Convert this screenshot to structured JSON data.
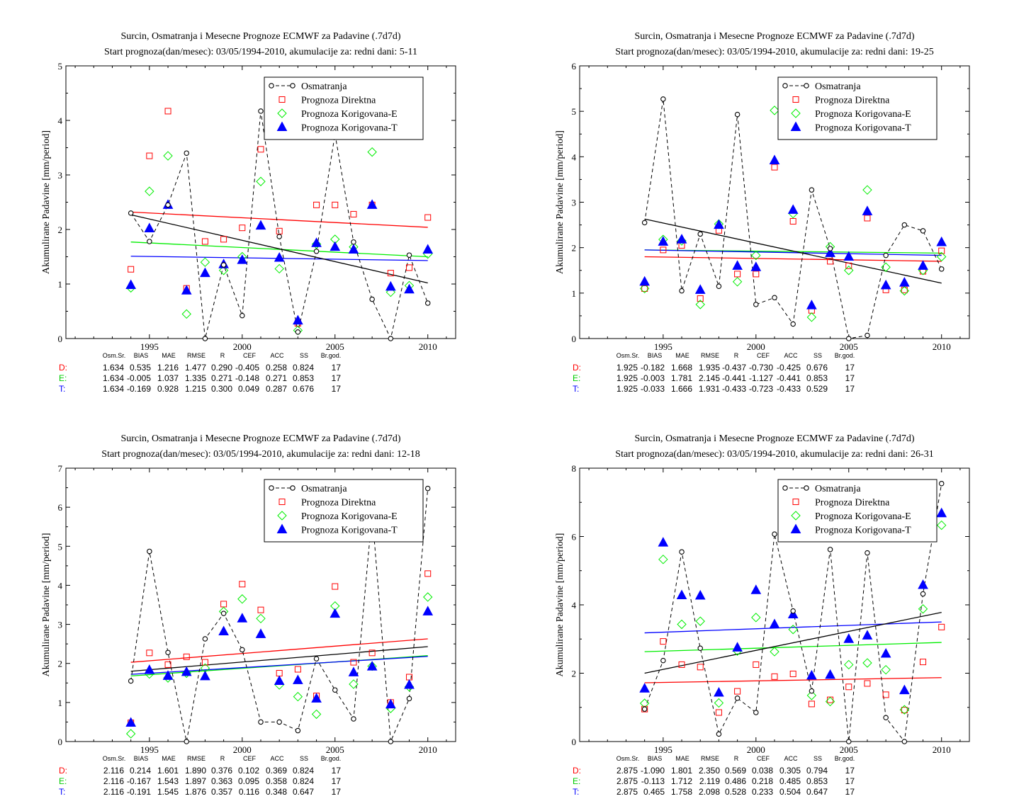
{
  "chart_data": [
    {
      "type": "scatter",
      "title": "Surcin, Osmatranja i Mesecne Prognoze ECMWF za Padavine (.7d7d)",
      "subtitle": "Start prognoza(dan/mesec): 03/05/1994-2010, akumulacije za: redni dani: 5-11",
      "ylabel": "Akumulirane Padavine [mm/period]",
      "xlim": [
        1990.5,
        2011.5
      ],
      "ylim": [
        0,
        5
      ],
      "xticks": [
        "1995",
        "2000",
        "2005",
        "2010"
      ],
      "yticks": [
        "0",
        "1",
        "2",
        "3",
        "4",
        "5"
      ],
      "x": [
        1994,
        1995,
        1996,
        1997,
        1998,
        1999,
        2000,
        2001,
        2002,
        2003,
        2004,
        2005,
        2006,
        2007,
        2008,
        2009,
        2010
      ],
      "legend": [
        "Osmatranja",
        "Prognoza Direktna",
        "Prognoza Korigovana-E",
        "Prognoza Korigovana-T"
      ],
      "series": [
        {
          "name": "Osmatranja",
          "color": "#000000",
          "values": [
            2.3,
            1.78,
            2.45,
            3.4,
            0.0,
            1.35,
            0.42,
            4.17,
            1.87,
            0.12,
            1.6,
            3.75,
            1.77,
            0.72,
            0.0,
            1.53,
            0.65
          ]
        },
        {
          "name": "Prognoza Direktna",
          "color": "#ff0000",
          "values": [
            1.27,
            3.35,
            4.17,
            0.92,
            1.78,
            1.82,
            2.03,
            3.47,
            1.97,
            0.28,
            2.45,
            2.45,
            2.28,
            2.45,
            1.2,
            1.3,
            2.22
          ]
        },
        {
          "name": "Prognoza Korigovana-E",
          "color": "#00ee00",
          "values": [
            0.93,
            2.7,
            3.35,
            0.45,
            1.4,
            1.25,
            1.5,
            2.88,
            1.28,
            0.15,
            1.73,
            1.82,
            1.68,
            3.42,
            0.85,
            0.97,
            1.55
          ]
        },
        {
          "name": "Prognoza Korigovana-T",
          "color": "#0000ff",
          "values": [
            0.98,
            2.02,
            2.45,
            0.88,
            1.2,
            1.36,
            1.44,
            2.07,
            1.48,
            0.33,
            1.75,
            1.68,
            1.63,
            2.45,
            0.95,
            0.9,
            1.63
          ]
        }
      ],
      "trendlines": [
        {
          "color": "#ff0000",
          "y1994": 2.32,
          "y2010": 2.04
        },
        {
          "color": "#00ee00",
          "y1994": 1.77,
          "y2010": 1.5
        },
        {
          "color": "#0000ff",
          "y1994": 1.51,
          "y2010": 1.43
        },
        {
          "color": "#000000",
          "y1994": 2.27,
          "y2010": 1.02
        }
      ],
      "stats_header": [
        "Osm.Sr.",
        "BIAS",
        "MAE",
        "RMSE",
        "R",
        "CEF",
        "ACC",
        "SS",
        "Br.god."
      ],
      "stats": [
        {
          "label": "D:",
          "color": "#ff0000",
          "values": [
            "1.634",
            "0.535",
            "1.216",
            "1.477",
            "0.290",
            "-0.405",
            "0.258",
            "0.824",
            "17"
          ]
        },
        {
          "label": "E:",
          "color": "#00cc00",
          "values": [
            "1.634",
            "-0.005",
            "1.037",
            "1.335",
            "0.271",
            "-0.148",
            "0.271",
            "0.853",
            "17"
          ]
        },
        {
          "label": "T:",
          "color": "#0000ff",
          "values": [
            "1.634",
            "-0.169",
            "0.928",
            "1.215",
            "0.300",
            "0.049",
            "0.287",
            "0.676",
            "17"
          ]
        }
      ]
    },
    {
      "type": "scatter",
      "title": "Surcin, Osmatranja i Mesecne Prognoze ECMWF za Padavine (.7d7d)",
      "subtitle": "Start prognoza(dan/mesec): 03/05/1994-2010, akumulacije za: redni dani: 19-25",
      "ylabel": "Akumulirane Padavine [mm/period]",
      "xlim": [
        1990.5,
        2011.5
      ],
      "ylim": [
        0,
        6
      ],
      "xticks": [
        "1995",
        "2000",
        "2005",
        "2010"
      ],
      "yticks": [
        "0",
        "1",
        "2",
        "3",
        "4",
        "5",
        "6"
      ],
      "x": [
        1994,
        1995,
        1996,
        1997,
        1998,
        1999,
        2000,
        2001,
        2002,
        2003,
        2004,
        2005,
        2006,
        2007,
        2008,
        2009,
        2010
      ],
      "legend": [
        "Osmatranja",
        "Prognoza Direktna",
        "Prognoza Korigovana-E",
        "Prognoza Korigovana-T"
      ],
      "series": [
        {
          "name": "Osmatranja",
          "color": "#000000",
          "values": [
            2.55,
            5.27,
            1.05,
            2.3,
            1.15,
            4.93,
            0.75,
            0.9,
            0.32,
            3.27,
            1.98,
            0.0,
            0.07,
            1.83,
            2.5,
            2.37,
            1.53
          ]
        },
        {
          "name": "Prognoza Direktna",
          "color": "#ff0000",
          "values": [
            1.1,
            1.95,
            2.05,
            0.88,
            2.38,
            1.42,
            1.42,
            3.77,
            2.58,
            0.62,
            1.7,
            1.6,
            2.65,
            1.07,
            1.07,
            1.48,
            1.93
          ]
        },
        {
          "name": "Prognoza Korigovana-E",
          "color": "#00ee00",
          "values": [
            1.1,
            2.18,
            2.15,
            0.75,
            2.52,
            1.25,
            1.83,
            5.02,
            2.75,
            0.47,
            2.02,
            1.5,
            3.27,
            1.57,
            1.05,
            1.5,
            1.8
          ]
        },
        {
          "name": "Prognoza Korigovana-T",
          "color": "#0000ff",
          "values": [
            1.25,
            2.13,
            2.18,
            1.07,
            2.5,
            1.6,
            1.57,
            3.92,
            2.83,
            0.73,
            1.88,
            1.8,
            2.8,
            1.17,
            1.23,
            1.6,
            2.12
          ]
        }
      ],
      "trendlines": [
        {
          "color": "#ff0000",
          "y1994": 1.8,
          "y2010": 1.7
        },
        {
          "color": "#00ee00",
          "y1994": 1.95,
          "y2010": 1.88
        },
        {
          "color": "#0000ff",
          "y1994": 1.95,
          "y2010": 1.83
        },
        {
          "color": "#000000",
          "y1994": 2.63,
          "y2010": 1.22
        }
      ],
      "stats_header": [
        "Osm.Sr.",
        "BIAS",
        "MAE",
        "RMSE",
        "R",
        "CEF",
        "ACC",
        "SS",
        "Br.god."
      ],
      "stats": [
        {
          "label": "D:",
          "color": "#ff0000",
          "values": [
            "1.925",
            "-0.182",
            "1.668",
            "1.935",
            "-0.437",
            "-0.730",
            "-0.425",
            "0.676",
            "17"
          ]
        },
        {
          "label": "E:",
          "color": "#00cc00",
          "values": [
            "1.925",
            "-0.003",
            "1.781",
            "2.145",
            "-0.441",
            "-1.127",
            "-0.441",
            "0.853",
            "17"
          ]
        },
        {
          "label": "T:",
          "color": "#0000ff",
          "values": [
            "1.925",
            "-0.033",
            "1.666",
            "1.931",
            "-0.433",
            "-0.723",
            "-0.433",
            "0.529",
            "17"
          ]
        }
      ]
    },
    {
      "type": "scatter",
      "title": "Surcin, Osmatranja i Mesecne Prognoze ECMWF za Padavine (.7d7d)",
      "subtitle": "Start prognoza(dan/mesec): 03/05/1994-2010, akumulacije za: redni dani: 12-18",
      "ylabel": "Akumulirane Padavine [mm/period]",
      "xlim": [
        1990.5,
        2011.5
      ],
      "ylim": [
        0,
        7
      ],
      "xticks": [
        "1995",
        "2000",
        "2005",
        "2010"
      ],
      "yticks": [
        "0",
        "1",
        "2",
        "3",
        "4",
        "5",
        "6",
        "7"
      ],
      "x": [
        1994,
        1995,
        1996,
        1997,
        1998,
        1999,
        2000,
        2001,
        2002,
        2003,
        2004,
        2005,
        2006,
        2007,
        2008,
        2009,
        2010
      ],
      "legend": [
        "Osmatranja",
        "Prognoza Direktna",
        "Prognoza Korigovana-E",
        "Prognoza Korigovana-T"
      ],
      "series": [
        {
          "name": "Osmatranja",
          "color": "#000000",
          "values": [
            1.55,
            4.87,
            2.28,
            0.0,
            2.63,
            3.28,
            2.35,
            0.5,
            0.5,
            0.28,
            2.12,
            1.32,
            0.58,
            5.85,
            0.0,
            1.1,
            6.48
          ]
        },
        {
          "name": "Prognoza Direktna",
          "color": "#ff0000",
          "values": [
            0.48,
            2.27,
            1.97,
            2.17,
            2.03,
            3.52,
            4.03,
            3.37,
            1.75,
            1.85,
            1.17,
            3.97,
            2.03,
            2.27,
            1.0,
            1.65,
            4.3
          ]
        },
        {
          "name": "Prognoza Korigovana-E",
          "color": "#00ee00",
          "values": [
            0.2,
            1.73,
            1.63,
            1.75,
            1.88,
            3.33,
            3.65,
            3.15,
            1.45,
            1.15,
            0.7,
            3.47,
            1.47,
            1.93,
            0.85,
            1.4,
            3.7
          ]
        },
        {
          "name": "Prognoza Korigovana-T",
          "color": "#0000ff",
          "values": [
            0.48,
            1.83,
            1.68,
            1.78,
            1.67,
            2.82,
            3.15,
            2.75,
            1.55,
            1.57,
            1.1,
            3.27,
            1.77,
            1.92,
            0.95,
            1.45,
            3.33
          ]
        }
      ],
      "trendlines": [
        {
          "color": "#ff0000",
          "y1994": 2.03,
          "y2010": 2.63
        },
        {
          "color": "#00ee00",
          "y1994": 1.68,
          "y2010": 2.2
        },
        {
          "color": "#0000ff",
          "y1994": 1.72,
          "y2010": 2.18
        },
        {
          "color": "#000000",
          "y1994": 1.8,
          "y2010": 2.43
        }
      ],
      "stats_header": [
        "Osm.Sr.",
        "BIAS",
        "MAE",
        "RMSE",
        "R",
        "CEF",
        "ACC",
        "SS",
        "Br.god."
      ],
      "stats": [
        {
          "label": "D:",
          "color": "#ff0000",
          "values": [
            "2.116",
            "0.214",
            "1.601",
            "1.890",
            "0.376",
            "0.102",
            "0.369",
            "0.824",
            "17"
          ]
        },
        {
          "label": "E:",
          "color": "#00cc00",
          "values": [
            "2.116",
            "-0.167",
            "1.543",
            "1.897",
            "0.363",
            "0.095",
            "0.358",
            "0.824",
            "17"
          ]
        },
        {
          "label": "T:",
          "color": "#0000ff",
          "values": [
            "2.116",
            "-0.191",
            "1.545",
            "1.876",
            "0.357",
            "0.116",
            "0.348",
            "0.647",
            "17"
          ]
        }
      ]
    },
    {
      "type": "scatter",
      "title": "Surcin, Osmatranja i Mesecne Prognoze ECMWF za Padavine (.7d7d)",
      "subtitle": "Start prognoza(dan/mesec): 03/05/1994-2010, akumulacije za: redni dani: 26-31",
      "ylabel": "Akumulirane Padavine [mm/period]",
      "xlim": [
        1990.5,
        2011.5
      ],
      "ylim": [
        0,
        8
      ],
      "xticks": [
        "1995",
        "2000",
        "2005",
        "2010"
      ],
      "yticks": [
        "0",
        "2",
        "4",
        "6",
        "8"
      ],
      "x": [
        1994,
        1995,
        1996,
        1997,
        1998,
        1999,
        2000,
        2001,
        2002,
        2003,
        2004,
        2005,
        2006,
        2007,
        2008,
        2009,
        2010
      ],
      "legend": [
        "Osmatranja",
        "Prognoza Direktna",
        "Prognoza Korigovana-E",
        "Prognoza Korigovana-T"
      ],
      "series": [
        {
          "name": "Osmatranja",
          "color": "#000000",
          "values": [
            0.95,
            2.37,
            5.55,
            2.73,
            0.22,
            1.27,
            0.85,
            6.07,
            3.82,
            1.48,
            5.62,
            0.0,
            5.52,
            0.7,
            0.0,
            4.32,
            7.55
          ]
        },
        {
          "name": "Prognoza Direktna",
          "color": "#ff0000",
          "values": [
            0.95,
            2.93,
            2.25,
            2.18,
            0.85,
            1.47,
            2.25,
            1.9,
            1.98,
            1.1,
            1.22,
            1.6,
            1.7,
            1.37,
            0.92,
            2.33,
            3.35
          ]
        },
        {
          "name": "Prognoza Korigovana-E",
          "color": "#00ee00",
          "values": [
            1.12,
            5.33,
            3.43,
            3.52,
            1.13,
            2.65,
            3.63,
            2.63,
            3.28,
            1.35,
            1.17,
            2.25,
            2.3,
            2.1,
            0.93,
            3.88,
            6.33
          ]
        },
        {
          "name": "Prognoza Korigovana-T",
          "color": "#0000ff",
          "values": [
            1.55,
            5.82,
            4.28,
            4.27,
            1.43,
            2.75,
            4.43,
            3.43,
            3.72,
            1.93,
            1.95,
            3.0,
            3.1,
            2.57,
            1.5,
            4.58,
            6.68
          ]
        }
      ],
      "trendlines": [
        {
          "color": "#ff0000",
          "y1994": 1.72,
          "y2010": 1.87
        },
        {
          "color": "#00ee00",
          "y1994": 2.63,
          "y2010": 2.9
        },
        {
          "color": "#0000ff",
          "y1994": 3.18,
          "y2010": 3.5
        },
        {
          "color": "#000000",
          "y1994": 2.0,
          "y2010": 3.78
        }
      ],
      "stats_header": [
        "Osm.Sr.",
        "BIAS",
        "MAE",
        "RMSE",
        "R",
        "CEF",
        "ACC",
        "SS",
        "Br.god."
      ],
      "stats": [
        {
          "label": "D:",
          "color": "#ff0000",
          "values": [
            "2.875",
            "-1.090",
            "1.801",
            "2.350",
            "0.569",
            "0.038",
            "0.305",
            "0.794",
            "17"
          ]
        },
        {
          "label": "E:",
          "color": "#00cc00",
          "values": [
            "2.875",
            "-0.113",
            "1.712",
            "2.119",
            "0.486",
            "0.218",
            "0.485",
            "0.853",
            "17"
          ]
        },
        {
          "label": "T:",
          "color": "#0000ff",
          "values": [
            "2.875",
            "0.465",
            "1.758",
            "2.098",
            "0.528",
            "0.233",
            "0.504",
            "0.647",
            "17"
          ]
        }
      ]
    }
  ]
}
